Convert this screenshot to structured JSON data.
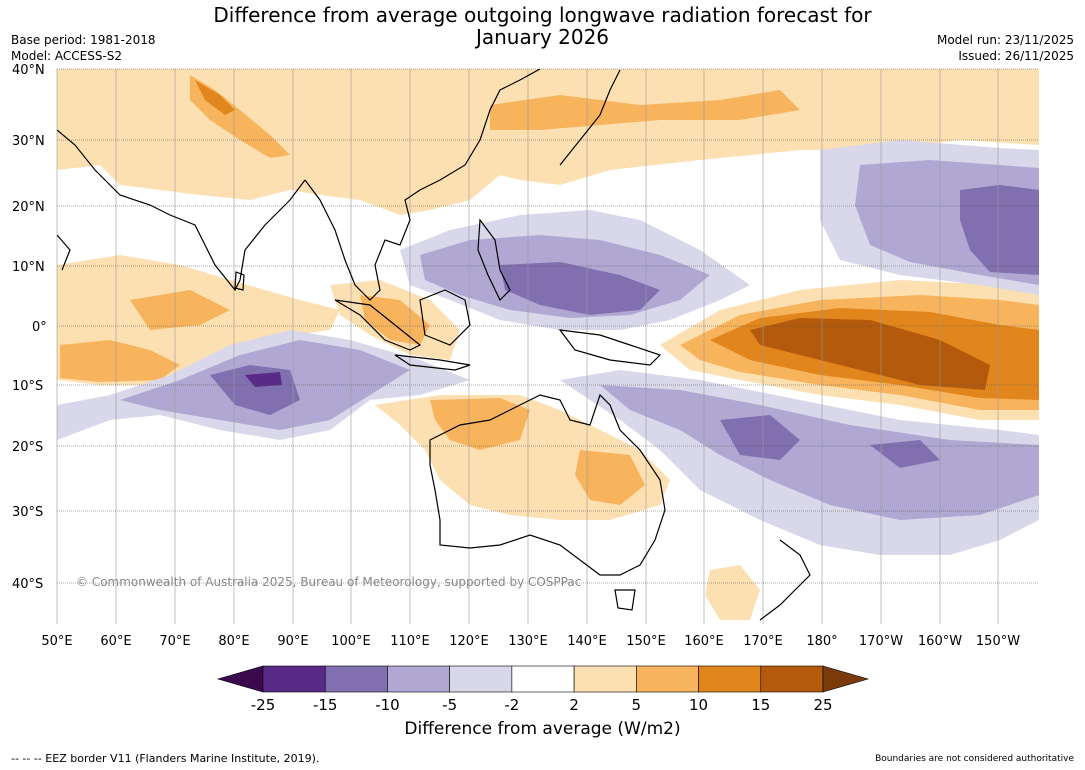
{
  "title": {
    "line1": "Difference from average outgoing longwave radiation forecast for",
    "line2": "January 2026"
  },
  "meta_left": {
    "base_period": "Base period: 1981-2018",
    "model": "Model: ACCESS-S2"
  },
  "meta_right": {
    "model_run": "Model run: 23/11/2025",
    "issued": "Issued: 26/11/2025"
  },
  "map": {
    "lat_labels": [
      "40°N",
      "30°N",
      "20°N",
      "10°N",
      "0°",
      "10°S",
      "20°S",
      "30°S",
      "40°S"
    ],
    "lon_labels": [
      "50°E",
      "60°E",
      "70°E",
      "80°E",
      "90°E",
      "100°E",
      "110°E",
      "120°E",
      "130°E",
      "140°E",
      "150°E",
      "160°E",
      "170°E",
      "180°",
      "170°W",
      "160°W",
      "150°W"
    ],
    "copyright": "© Commonwealth of Australia 2025, Bureau of Meteorology, supported by COSPPac"
  },
  "colorbar": {
    "title": "Difference from average (W/m2)",
    "ticks": [
      "-25",
      "-15",
      "-10",
      "-5",
      "-2",
      "2",
      "5",
      "10",
      "15",
      "25"
    ],
    "colors": [
      "#3a0a4d",
      "#5a2a88",
      "#8070b0",
      "#b0a8d2",
      "#d8d8ea",
      "#ffffff",
      "#fde0b2",
      "#f8b45c",
      "#e0861c",
      "#b45a0c",
      "#7a3a0a"
    ]
  },
  "footer": {
    "eez": "--  --  -- EEZ border V11 (Flanders Marine Institute, 2019).",
    "disclaimer": "Boundaries are not considered authoritative"
  }
}
